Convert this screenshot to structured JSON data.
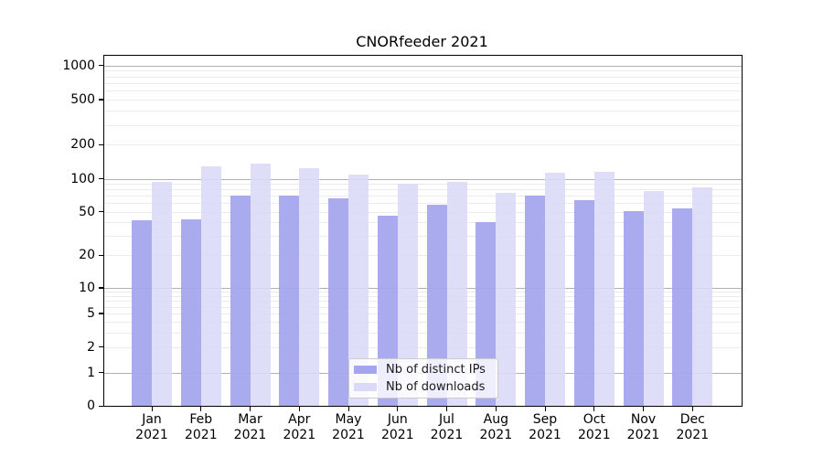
{
  "chart_data": {
    "type": "bar",
    "title": "CNORfeeder 2021",
    "months": [
      "Jan",
      "Feb",
      "Mar",
      "Apr",
      "May",
      "Jun",
      "Jul",
      "Aug",
      "Sep",
      "Oct",
      "Nov",
      "Dec"
    ],
    "year": "2021",
    "categories": [
      "Jan 2021",
      "Feb 2021",
      "Mar 2021",
      "Apr 2021",
      "May 2021",
      "Jun 2021",
      "Jul 2021",
      "Aug 2021",
      "Sep 2021",
      "Oct 2021",
      "Nov 2021",
      "Dec 2021"
    ],
    "series": [
      {
        "name": "Nb of distinct IPs",
        "color": "#a5a5ee",
        "values": [
          42,
          43,
          70,
          71,
          66,
          46,
          58,
          40,
          70,
          64,
          51,
          54
        ]
      },
      {
        "name": "Nb of downloads",
        "color": "#dadaf8",
        "values": [
          94,
          130,
          136,
          125,
          110,
          91,
          95,
          75,
          113,
          116,
          77,
          84
        ]
      }
    ],
    "y_ticks": [
      0,
      1,
      2,
      5,
      10,
      20,
      50,
      100,
      200,
      500,
      1000
    ],
    "yscale": "symlog",
    "ylim": [
      0,
      1400
    ],
    "xlabel": "",
    "ylabel": "",
    "grid": "horizontal major+minor",
    "legend_position": "lower center inside plot",
    "style": {
      "major_grid_color": "#b0b0b0",
      "minor_grid_color": "#ebebeb",
      "axis_color": "#000000",
      "background": "#ffffff"
    }
  }
}
